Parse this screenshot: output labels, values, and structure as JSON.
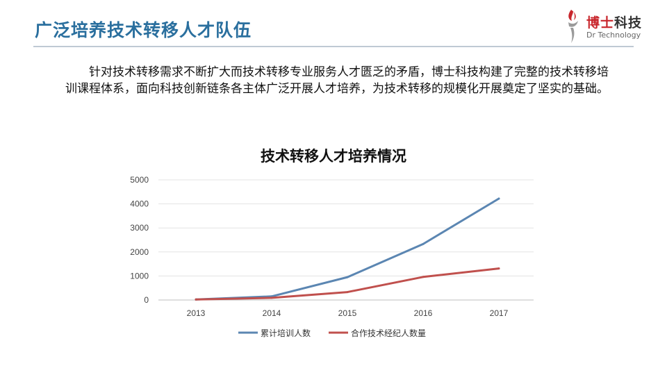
{
  "header": {
    "title": "广泛培养技术转移人才队伍",
    "logo": {
      "name_accent": "博士",
      "name_rest": "科技",
      "english": "Dr Technology",
      "brand_red": "#c8262c"
    }
  },
  "intro": {
    "text": "针对技术转移需求不断扩大而技术转移专业服务人才匮乏的矛盾，博士科技构建了完整的技术转移培训课程体系，面向科技创新链条各主体广泛开展人才培养，为技术转移的规模化开展奠定了坚实的基础。"
  },
  "chart_data": {
    "type": "line",
    "title": "技术转移人才培养情况",
    "xlabel": "",
    "ylabel": "",
    "categories": [
      "2013",
      "2014",
      "2015",
      "2016",
      "2017"
    ],
    "yticks": [
      "0",
      "1000",
      "2000",
      "3000",
      "4000",
      "5000"
    ],
    "ylim": [
      0,
      5000
    ],
    "grid": true,
    "legend_position": "bottom",
    "series": [
      {
        "name": "累计培训人数",
        "color": "#5b86b2",
        "values": [
          20,
          150,
          950,
          2330,
          4220
        ]
      },
      {
        "name": "合作技术经纪人数量",
        "color": "#c0504d",
        "values": [
          20,
          90,
          330,
          960,
          1310
        ]
      }
    ]
  }
}
